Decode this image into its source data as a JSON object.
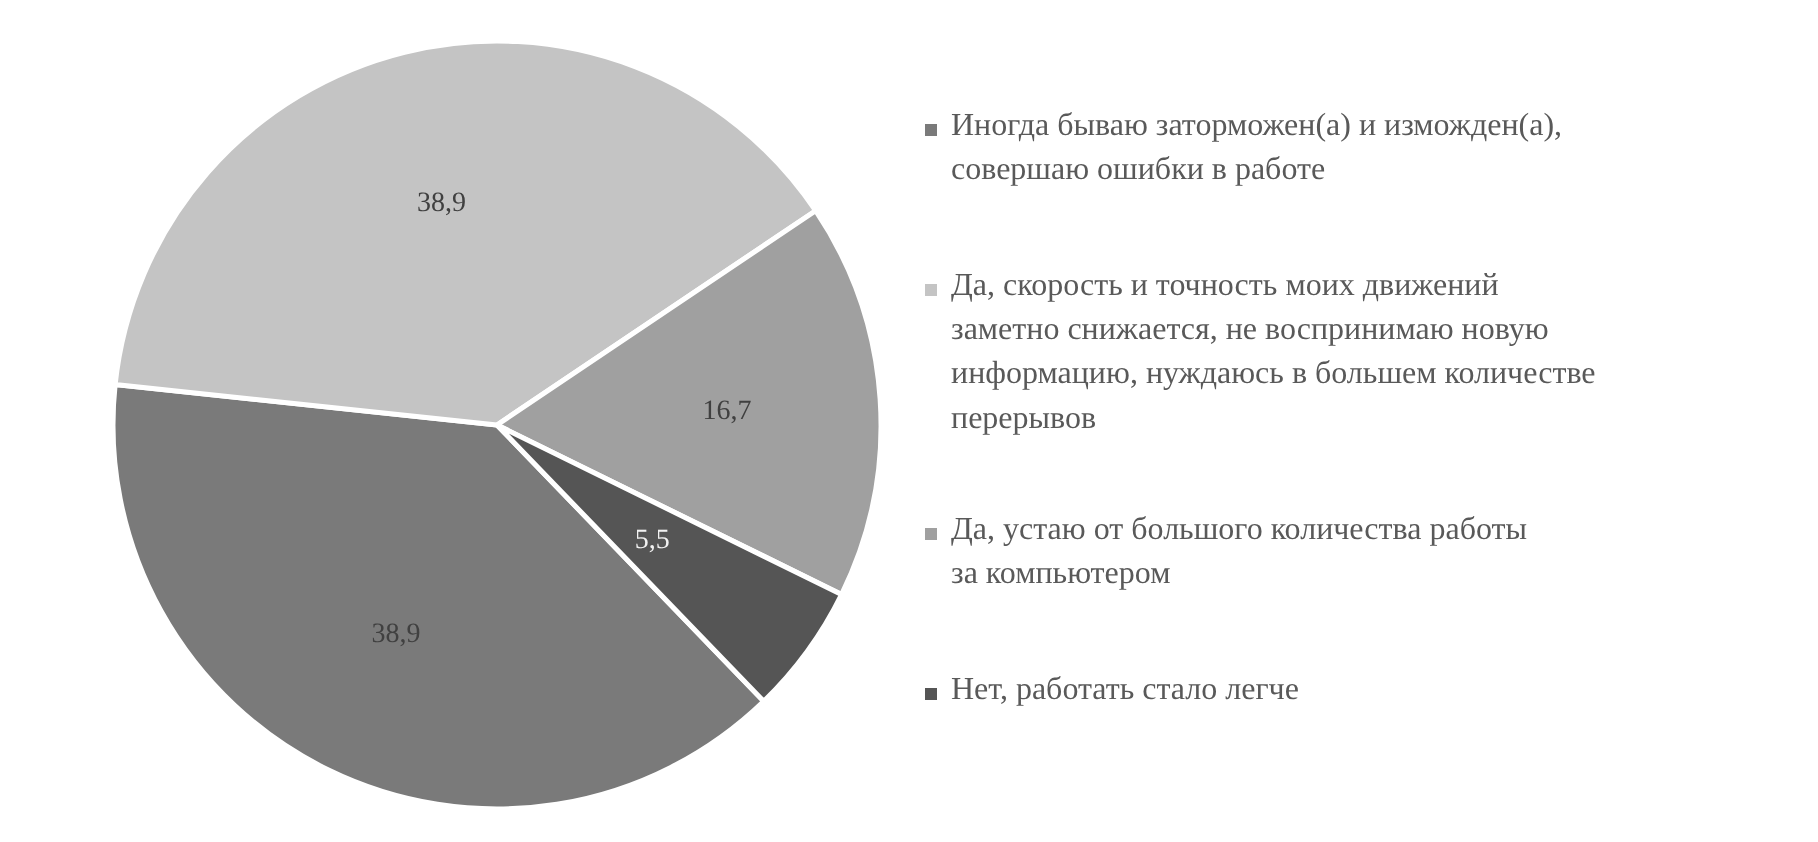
{
  "chart_data": {
    "type": "pie",
    "categories": [
      "Иногда бываю заторможен(а) и изможден(а), совершаю ошибки в работе",
      "Да, скорость и точность моих движений заметно снижается, не воспринимаю новую информацию, нуждаюсь в большем количестве перерывов",
      "Да, устаю от большого количества работы за компьютером",
      "Нет, работать стало легче"
    ],
    "values": [
      38.9,
      38.9,
      16.7,
      5.5
    ],
    "colors": [
      "#7a7a7a",
      "#c4c4c4",
      "#a0a0a0",
      "#555555"
    ],
    "value_labels": [
      "38,9",
      "38,9",
      "16,7",
      "5,5"
    ],
    "legend": "right"
  }
}
